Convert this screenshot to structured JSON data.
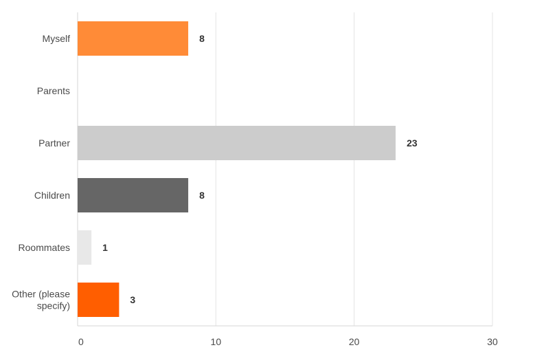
{
  "chart_data": {
    "type": "bar",
    "orientation": "horizontal",
    "title": "",
    "xlabel": "",
    "ylabel": "",
    "categories": [
      "Myself",
      "Parents",
      "Partner",
      "Children",
      "Roommates",
      "Other (please specify)"
    ],
    "values": [
      8,
      0,
      23,
      8,
      1,
      3
    ],
    "value_labels": [
      "8",
      "",
      "23",
      "8",
      "1",
      "3"
    ],
    "bar_colors": [
      "#ff8b37",
      "#ff8b37",
      "#cccccc",
      "#666666",
      "#e8e8e8",
      "#ff5e00"
    ],
    "xlim": [
      0,
      30
    ],
    "xticks": [
      0,
      10,
      20,
      30
    ],
    "xtick_labels": [
      "0",
      "10",
      "20",
      "30"
    ],
    "grid": true,
    "legend": "none"
  }
}
